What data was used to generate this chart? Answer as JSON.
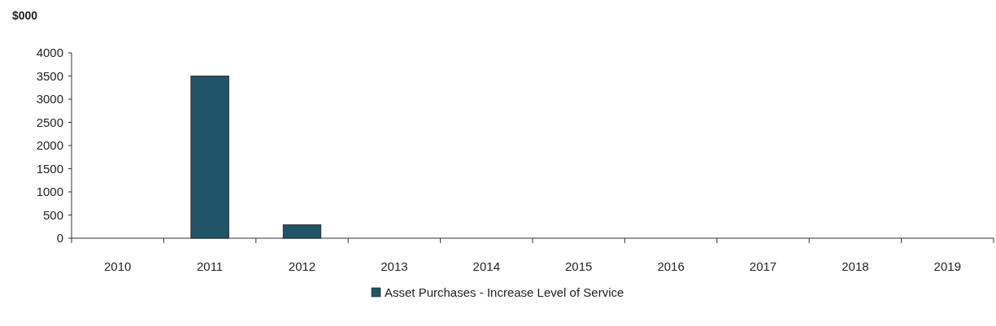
{
  "chart_data": {
    "type": "bar",
    "ylabel": "$000",
    "categories": [
      "2010",
      "2011",
      "2012",
      "2013",
      "2014",
      "2015",
      "2016",
      "2017",
      "2018",
      "2019"
    ],
    "series": [
      {
        "name": "Asset Purchases - Increase Level of Service",
        "color": "#215468",
        "values": [
          0,
          3500,
          290,
          0,
          0,
          0,
          0,
          0,
          0,
          0
        ]
      }
    ],
    "ylim": [
      0,
      4000
    ],
    "yticks": [
      0,
      500,
      1000,
      1500,
      2000,
      2500,
      3000,
      3500,
      4000
    ],
    "grid": false,
    "legend": "bottom"
  }
}
